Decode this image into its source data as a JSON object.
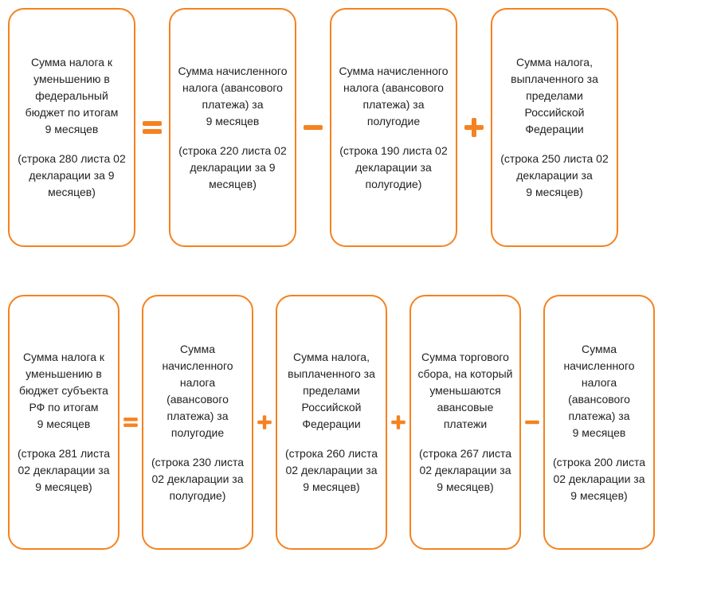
{
  "colors": {
    "box_border": "#f58220",
    "operator": "#f58220",
    "text": "#222222",
    "background": "#ffffff"
  },
  "typography": {
    "box_fontsize": 14,
    "font_family": "Arial"
  },
  "layout": {
    "type": "flowchart",
    "rows": 2,
    "row1_boxes": 4,
    "row2_boxes": 5,
    "box_border_radius": 20,
    "row_gap": 60
  },
  "row1": {
    "boxes": [
      {
        "main": "Сумма налога к уменьшению в федеральный бюджет по итогам\n9 месяцев",
        "sub": "(строка 280 листа 02 декларации за 9 месяцев)"
      },
      {
        "main": "Сумма начисленного налога (авансового платежа) за\n9 месяцев",
        "sub": "(строка 220 листа 02 декларации за 9 месяцев)"
      },
      {
        "main": "Сумма начисленного налога (авансового платежа) за полугодие",
        "sub": "(строка 190 листа 02 декларации за полугодие)"
      },
      {
        "main": "Сумма налога, выплаченного за пределами Российской Федерации",
        "sub": "(строка 250 листа 02 декларации за\n9 месяцев)"
      }
    ],
    "ops": [
      "equals",
      "minus",
      "plus"
    ]
  },
  "row2": {
    "boxes": [
      {
        "main": "Сумма налога к уменьшению в  бюджет субъекта РФ по итогам\n9 месяцев",
        "sub": "(строка 281 листа 02 декларации за\n9 месяцев)"
      },
      {
        "main": "Сумма начисленного налога (авансового платежа) за полугодие",
        "sub": "(строка 230 листа 02 декларации за полугодие)"
      },
      {
        "main": "Сумма налога, выплаченного за пределами Российской Федерации",
        "sub": "(строка 260 листа 02 декларации за\n9 месяцев)"
      },
      {
        "main": "Сумма торгового сбора, на который уменьшаются авансовые платежи",
        "sub": "(строка 267 листа 02 декларации за\n9 месяцев)"
      },
      {
        "main": "Сумма начисленного налога (авансового платежа) за\n9 месяцев",
        "sub": "(строка 200 листа 02 декларации за\n9 месяцев)"
      }
    ],
    "ops": [
      "equals",
      "plus",
      "plus",
      "minus"
    ]
  }
}
